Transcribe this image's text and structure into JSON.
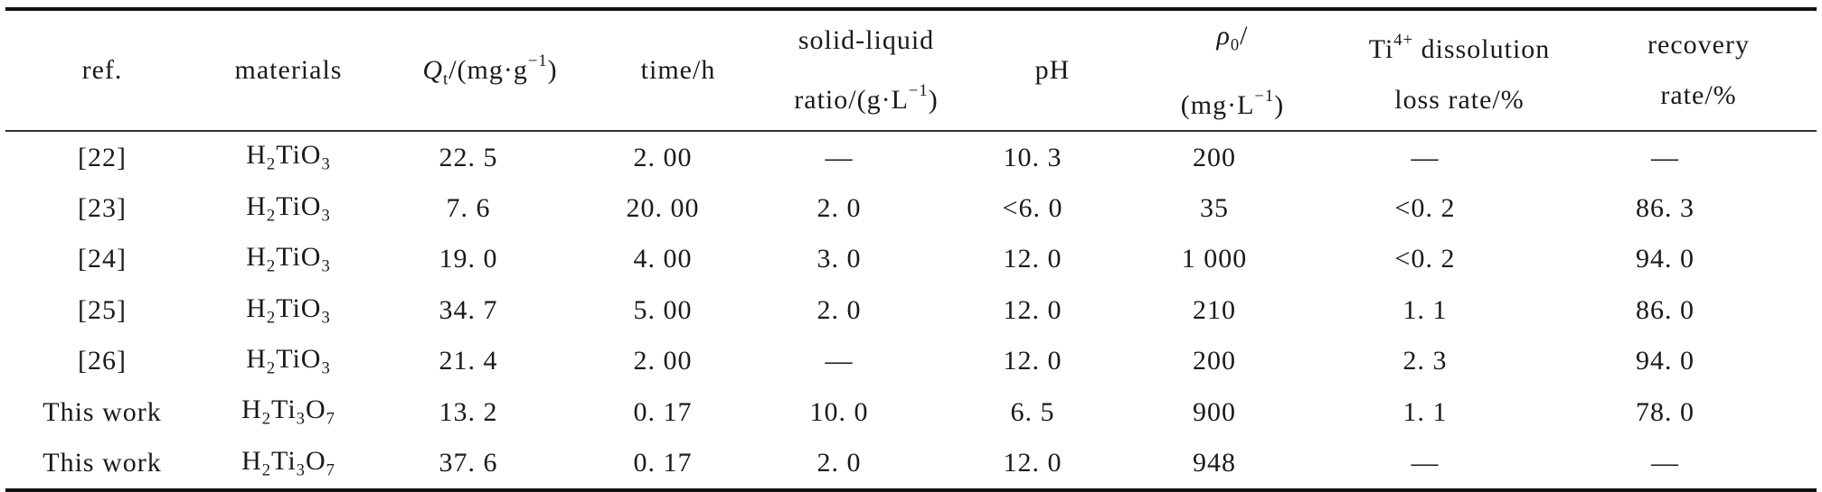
{
  "table": {
    "headers": {
      "ref": "ref.",
      "materials": "materials",
      "qt": {
        "symbol": "Q",
        "sub": "t",
        "unit_open": "/(mg·g",
        "unit_sup": "−1",
        "unit_close": ")"
      },
      "time": "time/h",
      "solid_liquid": {
        "line1": "solid-liquid",
        "line2_open": "ratio/(g·L",
        "line2_sup": "−1",
        "line2_close": ")"
      },
      "ph": "pH",
      "rho": {
        "symbol": "ρ",
        "sub": "0",
        "slash": "/",
        "line2_open": "(mg·L",
        "line2_sup": "−1",
        "line2_close": ")"
      },
      "ti_loss": {
        "ti": "Ti",
        "sup": "4+",
        "rest": " dissolution",
        "line2": "loss rate/%"
      },
      "recovery": {
        "line1": "recovery",
        "line2": "rate/%"
      }
    },
    "rows": [
      {
        "ref": "[22]",
        "mat": {
          "a": "H",
          "a_sub": "2",
          "b": "TiO",
          "b_sub": "3",
          "c": "",
          "c_sub": ""
        },
        "qt": "22. 5",
        "time": "2. 00",
        "sl": "—",
        "ph": "10. 3",
        "rho": "200",
        "ti": "—",
        "rec": "—"
      },
      {
        "ref": "[23]",
        "mat": {
          "a": "H",
          "a_sub": "2",
          "b": "TiO",
          "b_sub": "3",
          "c": "",
          "c_sub": ""
        },
        "qt": "7. 6",
        "time": "20. 00",
        "sl": "2. 0",
        "ph": "<6. 0",
        "rho": "35",
        "ti": "<0. 2",
        "rec": "86. 3"
      },
      {
        "ref": "[24]",
        "mat": {
          "a": "H",
          "a_sub": "2",
          "b": "TiO",
          "b_sub": "3",
          "c": "",
          "c_sub": ""
        },
        "qt": "19. 0",
        "time": "4. 00",
        "sl": "3. 0",
        "ph": "12. 0",
        "rho": "1 000",
        "ti": "<0. 2",
        "rec": "94. 0"
      },
      {
        "ref": "[25]",
        "mat": {
          "a": "H",
          "a_sub": "2",
          "b": "TiO",
          "b_sub": "3",
          "c": "",
          "c_sub": ""
        },
        "qt": "34. 7",
        "time": "5. 00",
        "sl": "2. 0",
        "ph": "12. 0",
        "rho": "210",
        "ti": "1. 1",
        "rec": "86. 0"
      },
      {
        "ref": "[26]",
        "mat": {
          "a": "H",
          "a_sub": "2",
          "b": "TiO",
          "b_sub": "3",
          "c": "",
          "c_sub": ""
        },
        "qt": "21. 4",
        "time": "2. 00",
        "sl": "—",
        "ph": "12. 0",
        "rho": "200",
        "ti": "2. 3",
        "rec": "94. 0"
      },
      {
        "ref": "This work",
        "mat": {
          "a": "H",
          "a_sub": "2",
          "b": "Ti",
          "b_sub": "3",
          "c": "O",
          "c_sub": "7"
        },
        "qt": "13. 2",
        "time": "0. 17",
        "sl": "10. 0",
        "ph": "6. 5",
        "rho": "900",
        "ti": "1. 1",
        "rec": "78. 0"
      },
      {
        "ref": "This work",
        "mat": {
          "a": "H",
          "a_sub": "2",
          "b": "Ti",
          "b_sub": "3",
          "c": "O",
          "c_sub": "7"
        },
        "qt": "37. 6",
        "time": "0. 17",
        "sl": "2. 0",
        "ph": "12. 0",
        "rho": "948",
        "ti": "—",
        "rec": "—"
      }
    ]
  }
}
